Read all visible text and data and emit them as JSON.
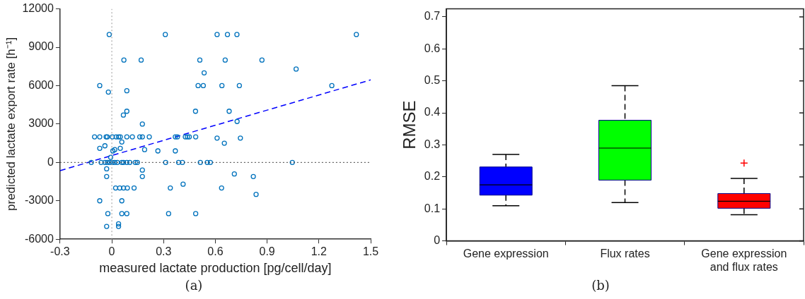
{
  "chart_data": [
    {
      "type": "scatter",
      "xlabel": "measured lactate production [pg/cell/day]",
      "ylabel": "predicted lactate export rate [h⁻¹]",
      "annotations": [
        "(a)"
      ],
      "xlim": [
        -0.3,
        1.5
      ],
      "xticks": [
        -0.3,
        0,
        0.3,
        0.6,
        0.9,
        1.2,
        1.5
      ],
      "ylim": [
        -6000,
        12000
      ],
      "yticks": [
        -6000,
        -3000,
        0,
        3000,
        6000,
        9000,
        12000
      ],
      "grid": false,
      "ref_lines": [
        {
          "axis": "x",
          "value": 0,
          "color": "#999999",
          "line_style": "dotted"
        },
        {
          "axis": "y",
          "value": 0,
          "color": "#404040",
          "line_style": "dotted"
        }
      ],
      "series": [
        {
          "type": "scatter",
          "color": "#0072bd",
          "marker": "circle",
          "x": [
            -0.015,
            0.31,
            0.61,
            0.67,
            0.725,
            1.417,
            0.07,
            0.17,
            0.51,
            0.657,
            0.87,
            0.535,
            1.068,
            -0.07,
            -0.02,
            0.087,
            0.5,
            0.53,
            0.638,
            0.739,
            1.275,
            0.087,
            0.067,
            0.485,
            0.68,
            0.177,
            0.726,
            -0.1,
            -0.07,
            -0.033,
            -0.026,
            0.003,
            0.025,
            0.039,
            0.049,
            0.087,
            0.119,
            0.162,
            0.177,
            0.217,
            0.368,
            0.38,
            0.426,
            0.438,
            0.449,
            0.486,
            0.61,
            0.652,
            0.745,
            -0.07,
            -0.04,
            0.006,
            0.017,
            0.049,
            0.058,
            0.19,
            0.267,
            0.368,
            -0.007,
            -0.119,
            -0.062,
            -0.04,
            -0.026,
            -0.012,
            0.003,
            0.017,
            0.032,
            0.058,
            0.068,
            0.087,
            0.104,
            0.136,
            0.148,
            0.312,
            0.387,
            0.409,
            0.513,
            0.553,
            0.571,
            1.046,
            -0.03,
            -0.03,
            0.177,
            0.177,
            0.71,
            0.82,
            0.022,
            0.046,
            0.068,
            0.09,
            0.129,
            0.339,
            0.413,
            0.636,
            0.836,
            -0.07,
            0.058,
            -0.023,
            0.058,
            0.087,
            0.329,
            0.486,
            -0.03,
            0.039,
            0.039
          ],
          "values": [
            10000,
            10000,
            10000,
            10000,
            10000,
            10000,
            8000,
            8000,
            8000,
            8000,
            8000,
            7000,
            7300,
            6000,
            5500,
            5600,
            6000,
            6000,
            6000,
            6000,
            6000,
            4000,
            3700,
            4000,
            4000,
            3000,
            3200,
            2000,
            2000,
            2000,
            2000,
            2000,
            2000,
            2000,
            2000,
            2000,
            2000,
            2000,
            2000,
            2000,
            2000,
            2000,
            2000,
            2000,
            2000,
            2000,
            1900,
            1500,
            1900,
            1100,
            1300,
            900,
            1000,
            1100,
            1600,
            1000,
            900,
            900,
            400,
            0,
            0,
            0,
            0,
            0,
            0,
            0,
            0,
            0,
            0,
            0,
            0,
            0,
            0,
            0,
            0,
            0,
            0,
            0,
            0,
            0,
            -500,
            -1100,
            -600,
            -1100,
            -900,
            -1100,
            -2000,
            -2000,
            -2000,
            -2000,
            -2000,
            -2000,
            -1700,
            -2000,
            -2500,
            -3000,
            -3000,
            -4000,
            -4000,
            -4000,
            -4000,
            -4000,
            -5000,
            -5000,
            -4800
          ]
        },
        {
          "type": "line",
          "color": "#0000ff",
          "line_style": "dashed",
          "x": [
            -0.3,
            1.5
          ],
          "values": [
            -640,
            6450
          ]
        }
      ]
    },
    {
      "type": "box",
      "ylabel": "RMSE",
      "annotations": [
        "(b)"
      ],
      "categories": [
        "Gene expression",
        "Flux rates",
        "Gene expression and flux rates"
      ],
      "colors": [
        "#0000ff",
        "#00ff00",
        "#ff0000"
      ],
      "ylim": [
        0,
        0.725
      ],
      "yticks": [
        0,
        0.1,
        0.2,
        0.3,
        0.4,
        0.5,
        0.6,
        0.7
      ],
      "grid": false,
      "boxes": [
        {
          "low": 0.11,
          "q1": 0.143,
          "median": 0.175,
          "q3": 0.231,
          "high": 0.27
        },
        {
          "low": 0.12,
          "q1": 0.19,
          "median": 0.29,
          "q3": 0.377,
          "high": 0.485
        },
        {
          "low": 0.082,
          "q1": 0.102,
          "median": 0.124,
          "q3": 0.148,
          "high": 0.195,
          "outliers": [
            0.243
          ]
        }
      ]
    }
  ]
}
